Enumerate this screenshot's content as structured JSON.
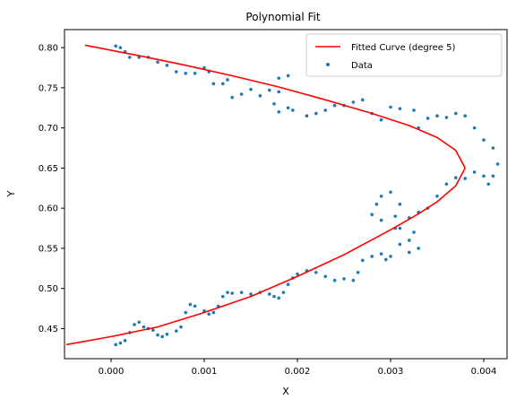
{
  "chart_data": {
    "type": "scatter",
    "title": "Polynomial Fit",
    "xlabel": "X",
    "ylabel": "Y",
    "xlim": [
      -0.0005,
      0.00425
    ],
    "ylim": [
      0.4125,
      0.8225
    ],
    "x_ticks": [
      0.0,
      0.001,
      0.002,
      0.003,
      0.004
    ],
    "x_tick_labels": [
      "0.000",
      "0.001",
      "0.002",
      "0.003",
      "0.004"
    ],
    "y_ticks": [
      0.45,
      0.5,
      0.55,
      0.6,
      0.65,
      0.7,
      0.75,
      0.8
    ],
    "y_tick_labels": [
      "0.45",
      "0.50",
      "0.55",
      "0.60",
      "0.65",
      "0.70",
      "0.75",
      "0.80"
    ],
    "grid": false,
    "legend_position": "top-right",
    "colors": {
      "fit": "#ff0000",
      "data": "#1f77b4"
    },
    "series": [
      {
        "name": "Fitted Curve (degree 5)",
        "kind": "line",
        "points": [
          [
            -0.00048,
            0.43
          ],
          [
            0.0,
            0.44
          ],
          [
            0.0005,
            0.452
          ],
          [
            0.001,
            0.47
          ],
          [
            0.0015,
            0.49
          ],
          [
            0.002,
            0.515
          ],
          [
            0.0025,
            0.542
          ],
          [
            0.003,
            0.573
          ],
          [
            0.0033,
            0.593
          ],
          [
            0.0035,
            0.608
          ],
          [
            0.0037,
            0.628
          ],
          [
            0.0038,
            0.65
          ],
          [
            0.0037,
            0.672
          ],
          [
            0.0035,
            0.688
          ],
          [
            0.0032,
            0.703
          ],
          [
            0.0028,
            0.718
          ],
          [
            0.0023,
            0.735
          ],
          [
            0.0018,
            0.751
          ],
          [
            0.0013,
            0.765
          ],
          [
            0.0008,
            0.778
          ],
          [
            0.0003,
            0.79
          ],
          [
            -0.00028,
            0.803
          ]
        ]
      },
      {
        "name": "Data",
        "kind": "scatter",
        "points": [
          [
            5e-05,
            0.43
          ],
          [
            0.0001,
            0.432
          ],
          [
            0.00015,
            0.435
          ],
          [
            0.0002,
            0.445
          ],
          [
            0.00025,
            0.455
          ],
          [
            0.0003,
            0.458
          ],
          [
            0.00035,
            0.452
          ],
          [
            0.0004,
            0.45
          ],
          [
            0.00045,
            0.448
          ],
          [
            0.0005,
            0.442
          ],
          [
            0.00055,
            0.44
          ],
          [
            0.0006,
            0.443
          ],
          [
            0.0007,
            0.447
          ],
          [
            0.00075,
            0.452
          ],
          [
            0.0008,
            0.47
          ],
          [
            0.00085,
            0.48
          ],
          [
            0.0009,
            0.478
          ],
          [
            0.001,
            0.472
          ],
          [
            0.00105,
            0.468
          ],
          [
            0.0011,
            0.47
          ],
          [
            0.00115,
            0.478
          ],
          [
            0.0012,
            0.49
          ],
          [
            0.00125,
            0.495
          ],
          [
            0.0013,
            0.494
          ],
          [
            0.0014,
            0.495
          ],
          [
            0.0015,
            0.493
          ],
          [
            0.0016,
            0.495
          ],
          [
            0.0017,
            0.493
          ],
          [
            0.00175,
            0.49
          ],
          [
            0.0018,
            0.488
          ],
          [
            0.00185,
            0.495
          ],
          [
            0.0019,
            0.505
          ],
          [
            0.00195,
            0.513
          ],
          [
            0.002,
            0.518
          ],
          [
            0.0021,
            0.522
          ],
          [
            0.0022,
            0.52
          ],
          [
            0.0023,
            0.515
          ],
          [
            0.0024,
            0.51
          ],
          [
            0.0025,
            0.512
          ],
          [
            0.0026,
            0.51
          ],
          [
            0.00265,
            0.52
          ],
          [
            0.0027,
            0.535
          ],
          [
            0.0028,
            0.54
          ],
          [
            0.0029,
            0.543
          ],
          [
            0.00295,
            0.536
          ],
          [
            0.003,
            0.54
          ],
          [
            0.0031,
            0.555
          ],
          [
            0.00305,
            0.575
          ],
          [
            0.0029,
            0.585
          ],
          [
            0.0028,
            0.592
          ],
          [
            0.00285,
            0.605
          ],
          [
            0.0029,
            0.615
          ],
          [
            0.003,
            0.62
          ],
          [
            0.0031,
            0.605
          ],
          [
            0.00305,
            0.59
          ],
          [
            0.0031,
            0.575
          ],
          [
            0.0032,
            0.56
          ],
          [
            0.0033,
            0.55
          ],
          [
            0.0032,
            0.545
          ],
          [
            0.00325,
            0.57
          ],
          [
            0.0032,
            0.588
          ],
          [
            0.0033,
            0.595
          ],
          [
            0.0034,
            0.6
          ],
          [
            0.0035,
            0.615
          ],
          [
            0.0036,
            0.63
          ],
          [
            0.0037,
            0.638
          ],
          [
            0.0038,
            0.637
          ],
          [
            0.0039,
            0.645
          ],
          [
            0.004,
            0.64
          ],
          [
            0.00405,
            0.63
          ],
          [
            0.0041,
            0.64
          ],
          [
            0.00415,
            0.655
          ],
          [
            0.0041,
            0.675
          ],
          [
            0.004,
            0.685
          ],
          [
            0.0039,
            0.7
          ],
          [
            0.0038,
            0.715
          ],
          [
            0.0037,
            0.718
          ],
          [
            0.0036,
            0.713
          ],
          [
            0.0035,
            0.715
          ],
          [
            0.0034,
            0.712
          ],
          [
            0.0033,
            0.7
          ],
          [
            0.00325,
            0.722
          ],
          [
            0.0031,
            0.724
          ],
          [
            0.003,
            0.726
          ],
          [
            0.0029,
            0.71
          ],
          [
            0.0028,
            0.718
          ],
          [
            0.0027,
            0.735
          ],
          [
            0.0026,
            0.732
          ],
          [
            0.0025,
            0.728
          ],
          [
            0.0024,
            0.728
          ],
          [
            0.0023,
            0.722
          ],
          [
            0.0022,
            0.718
          ],
          [
            0.0021,
            0.715
          ],
          [
            0.00195,
            0.722
          ],
          [
            0.0019,
            0.725
          ],
          [
            0.0018,
            0.72
          ],
          [
            0.00175,
            0.73
          ],
          [
            0.0018,
            0.745
          ],
          [
            0.0019,
            0.765
          ],
          [
            0.0018,
            0.762
          ],
          [
            0.0017,
            0.747
          ],
          [
            0.0016,
            0.74
          ],
          [
            0.0015,
            0.748
          ],
          [
            0.0014,
            0.742
          ],
          [
            0.0013,
            0.738
          ],
          [
            0.00125,
            0.76
          ],
          [
            0.0012,
            0.755
          ],
          [
            0.0011,
            0.755
          ],
          [
            0.00105,
            0.77
          ],
          [
            0.001,
            0.775
          ],
          [
            0.0009,
            0.768
          ],
          [
            0.0008,
            0.768
          ],
          [
            0.0007,
            0.77
          ],
          [
            0.0006,
            0.778
          ],
          [
            0.0005,
            0.782
          ],
          [
            0.0004,
            0.788
          ],
          [
            0.0003,
            0.788
          ],
          [
            0.0002,
            0.788
          ],
          [
            0.00015,
            0.795
          ],
          [
            0.0001,
            0.8
          ],
          [
            5e-05,
            0.802
          ]
        ]
      }
    ]
  }
}
